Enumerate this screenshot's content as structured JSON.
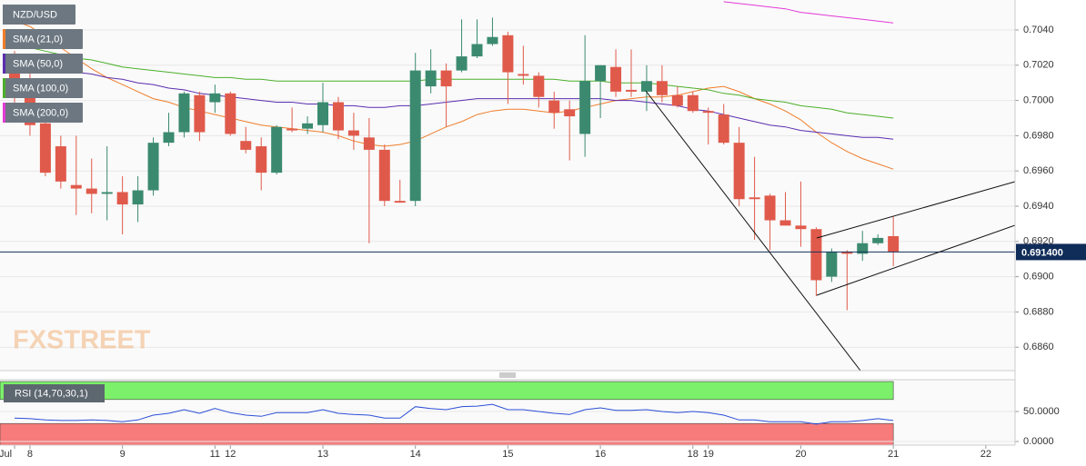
{
  "chart_data": [
    {
      "type": "candlestick",
      "title": "NZD/USD",
      "watermark": "FXSTREET",
      "categories": [
        "Jul",
        "8",
        null,
        null,
        null,
        null,
        null,
        "9",
        null,
        null,
        null,
        null,
        null,
        "11",
        "12",
        null,
        null,
        null,
        null,
        null,
        "13",
        null,
        null,
        null,
        null,
        null,
        "14",
        null,
        null,
        null,
        null,
        null,
        "15",
        null,
        null,
        null,
        null,
        null,
        "16",
        null,
        null,
        null,
        null,
        null,
        "18",
        "19",
        null,
        null,
        null,
        null,
        null,
        "20",
        null,
        null,
        null,
        null,
        null,
        "21",
        null,
        null,
        null,
        null,
        null,
        "22"
      ],
      "open": [
        0.702,
        0.7005,
        0.6987,
        0.6974,
        0.6952,
        0.695,
        0.6947,
        0.6948,
        0.6941,
        0.6949,
        0.6976,
        0.6982,
        0.7003,
        0.6999,
        0.7004,
        0.6977,
        0.6974,
        0.6959,
        0.6984,
        0.6984,
        0.6986,
        0.6999,
        0.6983,
        0.6979,
        0.6972,
        0.6943,
        0.6943,
        0.7008,
        0.7017,
        0.7017,
        0.7025,
        0.7032,
        0.7037,
        0.7015,
        0.7014,
        0.7,
        0.6995,
        0.6981,
        0.7011,
        0.7019,
        0.7006,
        0.7005,
        0.7011,
        0.7003,
        0.7003,
        0.6994,
        0.6992,
        0.6976,
        0.6945,
        0.6946,
        0.6932,
        0.6929,
        0.6927,
        0.69,
        0.6914,
        0.6913,
        0.6919,
        0.6923,
        null,
        null,
        null,
        null,
        null,
        null
      ],
      "high": [
        0.7028,
        0.702,
        0.699,
        0.698,
        0.698,
        0.6967,
        0.6974,
        0.6957,
        0.6957,
        0.6979,
        0.6993,
        0.7005,
        0.7005,
        0.7009,
        0.7005,
        0.6985,
        0.6979,
        0.6986,
        0.6996,
        0.6991,
        0.701,
        0.7002,
        0.6993,
        0.699,
        0.6975,
        0.6955,
        0.7027,
        0.7029,
        0.7021,
        0.7046,
        0.7046,
        0.7047,
        0.7039,
        0.7031,
        0.7016,
        0.7005,
        0.7,
        0.7037,
        0.702,
        0.7029,
        0.7029,
        0.702,
        0.702,
        0.7008,
        0.7005,
        0.6996,
        0.6998,
        0.6985,
        0.6968,
        0.6947,
        0.6948,
        0.6954,
        0.6928,
        0.6916,
        0.6915,
        0.6926,
        0.6924,
        0.6934,
        null,
        null,
        null,
        null,
        null,
        null
      ],
      "low": [
        0.6995,
        0.698,
        0.6957,
        0.695,
        0.6935,
        0.6936,
        0.6932,
        0.6924,
        0.6931,
        0.6946,
        0.6974,
        0.6979,
        0.6977,
        0.6993,
        0.698,
        0.697,
        0.6949,
        0.6958,
        0.6982,
        0.6981,
        0.6982,
        0.6978,
        0.6972,
        0.6919,
        0.694,
        0.6942,
        0.694,
        0.7004,
        0.6985,
        0.7016,
        0.7024,
        0.7031,
        0.6998,
        0.7009,
        0.6996,
        0.6984,
        0.6966,
        0.6968,
        0.699,
        0.7002,
        0.7002,
        0.6994,
        0.6999,
        0.6996,
        0.6993,
        0.6975,
        0.6975,
        0.694,
        0.6921,
        0.6915,
        0.693,
        0.6917,
        0.6889,
        0.6897,
        0.6881,
        0.6909,
        0.6918,
        0.6906,
        null,
        null,
        null,
        null,
        null,
        null
      ],
      "close": [
        0.7005,
        0.6986,
        0.6959,
        0.6954,
        0.695,
        0.6947,
        0.6948,
        0.6941,
        0.6949,
        0.6976,
        0.6982,
        0.7004,
        0.6982,
        0.7004,
        0.6981,
        0.6972,
        0.6959,
        0.6985,
        0.6983,
        0.6987,
        0.6999,
        0.6983,
        0.698,
        0.6972,
        0.6943,
        0.6942,
        0.7017,
        0.7017,
        0.7008,
        0.7025,
        0.7032,
        0.7036,
        0.7016,
        0.7014,
        0.7002,
        0.6993,
        0.6991,
        0.7011,
        0.702,
        0.7005,
        0.7005,
        0.7011,
        0.7003,
        0.6997,
        0.6994,
        0.6993,
        0.6976,
        0.6944,
        0.6944,
        0.6932,
        0.6929,
        0.6927,
        0.6898,
        0.6914,
        0.6913,
        0.6919,
        0.6922,
        0.6914,
        null,
        null,
        null,
        null,
        null,
        null
      ],
      "up_color": "#3b8a6f",
      "down_color": "#e05a4b",
      "series": [
        {
          "name": "SMA (21,0)",
          "color": "#f07d2a",
          "values": [
            0.7045,
            0.7042,
            0.7036,
            0.703,
            0.7024,
            0.7018,
            0.7013,
            0.7009,
            0.7005,
            0.7001,
            0.6999,
            0.6996,
            0.6994,
            0.6992,
            0.699,
            0.6988,
            0.6986,
            0.6985,
            0.6984,
            0.6983,
            0.6982,
            0.698,
            0.6977,
            0.6975,
            0.6974,
            0.6975,
            0.6977,
            0.6981,
            0.6985,
            0.6988,
            0.6992,
            0.6994,
            0.6995,
            0.6995,
            0.6994,
            0.6993,
            0.6994,
            0.6996,
            0.6998,
            0.7,
            0.7001,
            0.7002,
            0.7002,
            0.7003,
            0.7005,
            0.7007,
            0.7008,
            0.7005,
            0.7001,
            0.6998,
            0.6994,
            0.6989,
            0.6982,
            0.6976,
            0.6971,
            0.6967,
            0.6964,
            0.6961,
            null,
            null,
            null,
            null,
            null,
            null
          ]
        },
        {
          "name": "SMA (50,0)",
          "color": "#5b2db0",
          "values": [
            0.7023,
            0.7021,
            0.7019,
            0.7018,
            0.7016,
            0.7015,
            0.7013,
            0.7012,
            0.701,
            0.7009,
            0.7007,
            0.7006,
            0.7004,
            0.7003,
            0.7002,
            0.7001,
            0.7,
            0.6999,
            0.6999,
            0.6998,
            0.6998,
            0.6997,
            0.6997,
            0.6996,
            0.6996,
            0.6997,
            0.6997,
            0.6998,
            0.6999,
            0.7,
            0.7001,
            0.7001,
            0.7001,
            0.7001,
            0.7001,
            0.7001,
            0.7001,
            0.7001,
            0.7001,
            0.7,
            0.7,
            0.6999,
            0.6998,
            0.6997,
            0.6995,
            0.6994,
            0.6992,
            0.699,
            0.6988,
            0.6986,
            0.6985,
            0.6983,
            0.6982,
            0.6981,
            0.698,
            0.6979,
            0.6979,
            0.6978,
            null,
            null,
            null,
            null,
            null,
            null
          ]
        },
        {
          "name": "SMA (100,0)",
          "color": "#4caf2a",
          "values": [
            0.7031,
            0.703,
            0.7028,
            0.7026,
            0.7024,
            0.7023,
            0.7021,
            0.7019,
            0.7018,
            0.7017,
            0.7016,
            0.7015,
            0.7014,
            0.7013,
            0.7013,
            0.7012,
            0.7012,
            0.7011,
            0.7011,
            0.7011,
            0.7011,
            0.7011,
            0.7011,
            0.7011,
            0.7011,
            0.7011,
            0.7011,
            0.7012,
            0.7012,
            0.7012,
            0.7012,
            0.7012,
            0.7012,
            0.7012,
            0.7012,
            0.7012,
            0.7011,
            0.7011,
            0.7011,
            0.701,
            0.701,
            0.701,
            0.7009,
            0.7008,
            0.7007,
            0.7006,
            0.7004,
            0.7003,
            0.7001,
            0.7,
            0.6999,
            0.6997,
            0.6996,
            0.6995,
            0.6993,
            0.6992,
            0.6991,
            0.699,
            null,
            null,
            null,
            null,
            null,
            null
          ]
        },
        {
          "name": "SMA (200,0)",
          "color": "#e23ad6",
          "values": [
            null,
            null,
            null,
            null,
            null,
            null,
            null,
            null,
            null,
            null,
            null,
            null,
            null,
            null,
            null,
            null,
            null,
            null,
            null,
            null,
            null,
            null,
            null,
            null,
            null,
            null,
            null,
            null,
            null,
            null,
            null,
            null,
            null,
            null,
            null,
            null,
            null,
            null,
            null,
            null,
            null,
            null,
            null,
            null,
            null,
            null,
            0.7056,
            0.7055,
            0.7054,
            0.7053,
            0.7052,
            0.705,
            0.7049,
            0.7048,
            0.7047,
            0.7046,
            0.7045,
            0.7044,
            null,
            null,
            null,
            null,
            null,
            null
          ]
        }
      ],
      "ylim": [
        0.68467,
        0.7057
      ],
      "yticks": [
        {
          "value": 0.686,
          "label": "0.6860"
        },
        {
          "value": 0.688,
          "label": "0.6880"
        },
        {
          "value": 0.69,
          "label": "0.6900"
        },
        {
          "value": 0.692,
          "label": "0.6920"
        },
        {
          "value": 0.694,
          "label": "0.6940"
        },
        {
          "value": 0.696,
          "label": "0.6960"
        },
        {
          "value": 0.698,
          "label": "0.6980"
        },
        {
          "value": 0.7,
          "label": "0.7000"
        },
        {
          "value": 0.702,
          "label": "0.7020"
        },
        {
          "value": 0.704,
          "label": "0.7040"
        }
      ],
      "last_price": {
        "value": 0.6914,
        "label": "0.691400"
      },
      "grid": true
    },
    {
      "type": "line",
      "name": "RSI (14,70,30,1)",
      "color": "#2b4ed8",
      "values": [
        39,
        38,
        36,
        35,
        35,
        36,
        35,
        33,
        36,
        44,
        47,
        53,
        47,
        55,
        48,
        44,
        42,
        48,
        48,
        48,
        53,
        47,
        45,
        44,
        39,
        39,
        58,
        55,
        53,
        58,
        59,
        62,
        53,
        53,
        50,
        47,
        45,
        53,
        56,
        52,
        52,
        53,
        50,
        48,
        50,
        48,
        44,
        36,
        36,
        33,
        33,
        33,
        29,
        33,
        33,
        35,
        38,
        35,
        null,
        null,
        null,
        null,
        null,
        null
      ],
      "overbought": 70,
      "oversold": 30,
      "overbought_color": "#7cf06a",
      "oversold_color": "#f77b7b",
      "ylim": [
        -6,
        103
      ],
      "yticks": [
        {
          "value": 0,
          "label": "0.0000"
        },
        {
          "value": 50,
          "label": "50.0000"
        }
      ]
    }
  ]
}
